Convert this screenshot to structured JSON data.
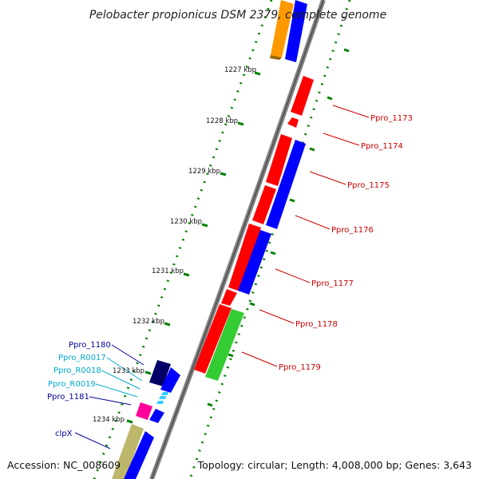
{
  "title": "Pelobacter propionicus DSM 2379, complete genome",
  "footer": {
    "accession": "Accession: NC_008609",
    "topology": "Topology: circular; Length: 4,008,000 bp; Genes: 3,643"
  },
  "kbp_ticks": [
    "1227 kbp",
    "1228 kbp",
    "1229 kbp",
    "1230 kbp",
    "1231 kbp",
    "1232 kbp",
    "1233 kbp",
    "1234 kbp"
  ],
  "gene_labels": {
    "right": [
      "Ppro_1173",
      "Ppro_1174",
      "Ppro_1175",
      "Ppro_1176",
      "Ppro_1177",
      "Ppro_1178",
      "Ppro_1179"
    ],
    "left": [
      "Ppro_1180",
      "Ppro_R0017",
      "Ppro_R0018",
      "Ppro_R0019",
      "Ppro_1181",
      "clpX"
    ]
  },
  "colors": {
    "cds_red": "#ff0000",
    "cds_blue": "#0000ff",
    "cds_navy": "#000066",
    "rna_cyan": "#33ccff",
    "magenta": "#ff0099",
    "green": "#33cc33",
    "orange": "#ff9900",
    "khaki": "#bdb76b",
    "dot_green": "#008000",
    "label_red": "#cc0000",
    "label_navy": "#000099",
    "label_cyan": "#00aacc"
  }
}
